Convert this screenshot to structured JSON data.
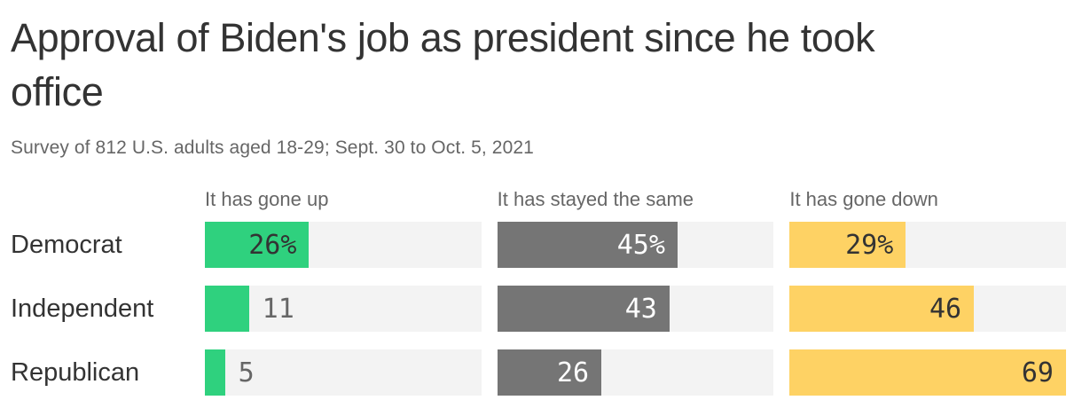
{
  "header": {
    "title": "Approval of Biden's job as president since he took office",
    "title_lines": [
      "Approval of Biden's job as president since he took",
      "office"
    ],
    "subtitle": "Survey of 812 U.S. adults aged 18-29; Sept. 30 to Oct. 5, 2021"
  },
  "chart_data": {
    "type": "bar",
    "orientation": "horizontal",
    "title": "Approval of Biden's job as president since he took office",
    "subtitle": "Survey of 812 U.S. adults aged 18-29; Sept. 30 to Oct. 5, 2021",
    "categories": [
      "Democrat",
      "Independent",
      "Republican"
    ],
    "series": [
      {
        "name": "It has gone up",
        "color": "#2fd17e",
        "label_color_inside": "#333333",
        "values": [
          26,
          11,
          5
        ],
        "labels": [
          "26%",
          "11",
          "5"
        ]
      },
      {
        "name": "It has stayed the same",
        "color": "#757575",
        "label_color_inside": "#ffffff",
        "values": [
          45,
          43,
          26
        ],
        "labels": [
          "45%",
          "43",
          "26"
        ]
      },
      {
        "name": "It has gone down",
        "color": "#fed264",
        "label_color_inside": "#333333",
        "values": [
          29,
          46,
          69
        ],
        "labels": [
          "29%",
          "46",
          "69"
        ]
      }
    ],
    "xlim": [
      0,
      69
    ],
    "xlabel": "",
    "ylabel": "",
    "grid": false,
    "legend_position": "column-headers",
    "track_color": "#f3f3f3",
    "outside_label_color": "#666666"
  },
  "colors": {
    "background": "#ffffff",
    "title_text": "#333333",
    "muted_text": "#666666",
    "green": "#2fd17e",
    "gray": "#757575",
    "yellow": "#fed264",
    "bar_track": "#f3f3f3"
  }
}
